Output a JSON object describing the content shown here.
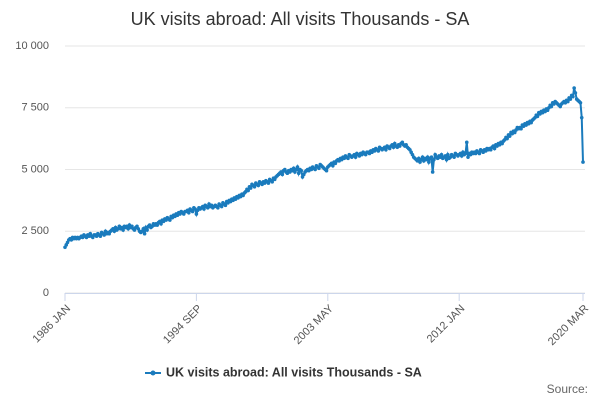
{
  "chart_data": {
    "type": "line",
    "title": "UK visits abroad: All visits Thousands - SA",
    "source": "Source:",
    "categories": [
      "1986 JAN",
      null,
      null,
      null,
      null,
      null,
      null,
      null,
      null,
      null,
      null,
      null,
      null,
      null,
      null,
      null,
      null,
      null,
      null,
      null,
      null,
      null,
      null,
      null,
      null,
      null,
      null,
      null,
      null,
      null,
      null,
      null,
      null,
      null,
      null,
      null,
      null,
      null,
      null,
      null,
      null,
      null,
      null,
      null,
      null,
      null,
      null,
      null,
      null,
      null,
      null,
      null,
      null,
      null,
      null,
      null,
      null,
      null,
      null,
      null,
      null,
      null,
      null,
      null,
      null,
      null,
      null,
      null,
      null,
      null,
      null,
      null,
      null,
      null,
      null,
      null,
      null,
      null,
      null,
      null,
      null,
      null,
      null,
      null,
      null,
      null,
      null,
      null,
      null,
      null,
      null,
      null,
      null,
      null,
      null,
      null,
      null,
      null,
      null,
      null,
      null,
      null,
      null,
      null,
      "1994 SEP",
      null,
      null,
      null,
      null,
      null,
      null,
      null,
      null,
      null,
      null,
      null,
      null,
      null,
      null,
      null,
      null,
      null,
      null,
      null,
      null,
      null,
      null,
      null,
      null,
      null,
      null,
      null,
      null,
      null,
      null,
      null,
      null,
      null,
      null,
      null,
      null,
      null,
      null,
      null,
      null,
      null,
      null,
      null,
      null,
      null,
      null,
      null,
      null,
      null,
      null,
      null,
      null,
      null,
      null,
      null,
      null,
      null,
      null,
      null,
      null,
      null,
      null,
      null,
      null,
      null,
      null,
      null,
      null,
      null,
      null,
      null,
      null,
      null,
      null,
      null,
      null,
      null,
      null,
      null,
      null,
      null,
      null,
      null,
      null,
      null,
      null,
      null,
      null,
      null,
      null,
      null,
      null,
      null,
      null,
      null,
      null,
      null,
      null,
      null,
      null,
      null,
      null,
      null,
      "2003 MAY",
      null,
      null,
      null,
      null,
      null,
      null,
      null,
      null,
      null,
      null,
      null,
      null,
      null,
      null,
      null,
      null,
      null,
      null,
      null,
      null,
      null,
      null,
      null,
      null,
      null,
      null,
      null,
      null,
      null,
      null,
      null,
      null,
      null,
      null,
      null,
      null,
      null,
      null,
      null,
      null,
      null,
      null,
      null,
      null,
      null,
      null,
      null,
      null,
      null,
      null,
      null,
      null,
      null,
      null,
      null,
      null,
      null,
      null,
      null,
      null,
      null,
      null,
      null,
      null,
      null,
      null,
      null,
      null,
      null,
      null,
      null,
      null,
      null,
      null,
      null,
      null,
      null,
      null,
      null,
      null,
      null,
      null,
      null,
      null,
      null,
      null,
      null,
      null,
      null,
      null,
      null,
      null,
      null,
      null,
      null,
      null,
      null,
      null,
      null,
      null,
      null,
      null,
      null,
      "2012 JAN",
      null,
      null,
      null,
      null,
      null,
      null,
      null,
      null,
      null,
      null,
      null,
      null,
      null,
      null,
      null,
      null,
      null,
      null,
      null,
      null,
      null,
      null,
      null,
      null,
      null,
      null,
      null,
      null,
      null,
      null,
      null,
      null,
      null,
      null,
      null,
      null,
      null,
      null,
      null,
      null,
      null,
      null,
      null,
      null,
      null,
      null,
      null,
      null,
      null,
      null,
      null,
      null,
      null,
      null,
      null,
      null,
      null,
      null,
      null,
      null,
      null,
      null,
      null,
      null,
      null,
      null,
      null,
      null,
      null,
      null,
      null,
      null,
      null,
      null,
      null,
      null,
      null,
      null,
      null,
      null,
      null,
      null,
      null,
      null,
      null,
      null,
      null,
      null,
      null,
      null,
      null,
      null,
      null,
      null,
      null,
      null,
      null,
      "2020 MAR"
    ],
    "series": [
      {
        "name": "UK visits abroad: All visits Thousands - SA",
        "color": "#1a7bbd",
        "values": [
          1850,
          1950,
          2050,
          2150,
          2200,
          2150,
          2250,
          2200,
          2250,
          2200,
          2250,
          2200,
          2250,
          2300,
          2250,
          2350,
          2300,
          2250,
          2350,
          2300,
          2400,
          2300,
          2250,
          2350,
          2350,
          2300,
          2400,
          2350,
          2300,
          2450,
          2400,
          2350,
          2500,
          2400,
          2450,
          2400,
          2500,
          2550,
          2600,
          2500,
          2650,
          2550,
          2600,
          2700,
          2600,
          2650,
          2550,
          2700,
          2650,
          2700,
          2600,
          2750,
          2650,
          2700,
          2600,
          2550,
          2650,
          2700,
          2600,
          2500,
          2450,
          2500,
          2600,
          2400,
          2650,
          2550,
          2700,
          2750,
          2650,
          2700,
          2800,
          2750,
          2800,
          2750,
          2850,
          2900,
          2800,
          2950,
          2900,
          3000,
          2950,
          3050,
          3000,
          2950,
          3100,
          3050,
          3150,
          3100,
          3200,
          3150,
          3250,
          3200,
          3300,
          3250,
          3200,
          3300,
          3300,
          3350,
          3250,
          3400,
          3350,
          3300,
          3450,
          3400,
          3200,
          3350,
          3450,
          3400,
          3450,
          3500,
          3400,
          3550,
          3500,
          3450,
          3600,
          3500,
          3550,
          3450,
          3500,
          3550,
          3500,
          3450,
          3600,
          3550,
          3500,
          3650,
          3600,
          3550,
          3700,
          3650,
          3750,
          3700,
          3800,
          3750,
          3850,
          3800,
          3900,
          3850,
          3950,
          3900,
          4000,
          3950,
          4050,
          4100,
          4200,
          4150,
          4300,
          4250,
          4400,
          4350,
          4300,
          4450,
          4400,
          4350,
          4500,
          4450,
          4400,
          4500,
          4450,
          4550,
          4500,
          4450,
          4600,
          4550,
          4500,
          4650,
          4600,
          4700,
          4750,
          4800,
          4850,
          4900,
          4800,
          4950,
          5000,
          4900,
          4850,
          4950,
          4900,
          5000,
          4950,
          5050,
          4900,
          5000,
          5100,
          4850,
          5000,
          4950,
          4700,
          4800,
          4900,
          4950,
          5000,
          4950,
          5050,
          5000,
          5100,
          5050,
          5000,
          5150,
          5100,
          5050,
          5200,
          5150,
          5100,
          5050,
          5000,
          4950,
          5100,
          5150,
          5200,
          5250,
          5150,
          5300,
          5250,
          5350,
          5400,
          5350,
          5450,
          5400,
          5500,
          5450,
          5550,
          5500,
          5450,
          5600,
          5550,
          5500,
          5550,
          5600,
          5500,
          5650,
          5600,
          5550,
          5650,
          5600,
          5700,
          5650,
          5600,
          5700,
          5700,
          5650,
          5750,
          5700,
          5800,
          5750,
          5850,
          5800,
          5750,
          5900,
          5850,
          5800,
          5850,
          5900,
          5800,
          5950,
          5900,
          5850,
          5950,
          6000,
          5900,
          6050,
          5950,
          5900,
          6000,
          5950,
          6050,
          6100,
          6000,
          5950,
          6000,
          5900,
          5850,
          5800,
          5700,
          5600,
          5500,
          5450,
          5400,
          5350,
          5450,
          5300,
          5400,
          5500,
          5350,
          5450,
          5400,
          5500,
          5300,
          5450,
          5500,
          4900,
          5400,
          5600,
          5500,
          5450,
          5550,
          5500,
          5600,
          5450,
          5500,
          5550,
          5400,
          5600,
          5450,
          5500,
          5600,
          5550,
          5500,
          5650,
          5600,
          5550,
          5600,
          5650,
          5550,
          5700,
          5600,
          5650,
          6100,
          5500,
          5650,
          5600,
          5700,
          5650,
          5700,
          5650,
          5750,
          5700,
          5650,
          5800,
          5750,
          5700,
          5800,
          5750,
          5850,
          5800,
          5850,
          5800,
          5900,
          5950,
          5850,
          6000,
          5950,
          6050,
          6000,
          6100,
          6050,
          6150,
          6200,
          6300,
          6250,
          6400,
          6350,
          6500,
          6450,
          6550,
          6500,
          6600,
          6700,
          6650,
          6700,
          6650,
          6800,
          6750,
          6850,
          6800,
          6900,
          6850,
          6950,
          6900,
          7000,
          7050,
          7100,
          7200,
          7150,
          7300,
          7250,
          7350,
          7300,
          7400,
          7350,
          7450,
          7400,
          7500,
          7600,
          7550,
          7700,
          7650,
          7750,
          7700,
          7650,
          7600,
          7550,
          7650,
          7700,
          7750,
          7700,
          7800,
          7750,
          7900,
          7850,
          8000,
          7950,
          8300,
          8100,
          7850,
          7800,
          7750,
          7700,
          7100,
          5300
        ]
      }
    ],
    "ylim": [
      0,
      10000
    ],
    "yticks": [
      0,
      {
        "value": 2500,
        "label": "2 500"
      },
      {
        "value": 5000,
        "label": "5 000"
      },
      {
        "value": 7500,
        "label": "7 500"
      },
      {
        "value": 10000,
        "label": "10 000"
      }
    ],
    "grid": true
  }
}
